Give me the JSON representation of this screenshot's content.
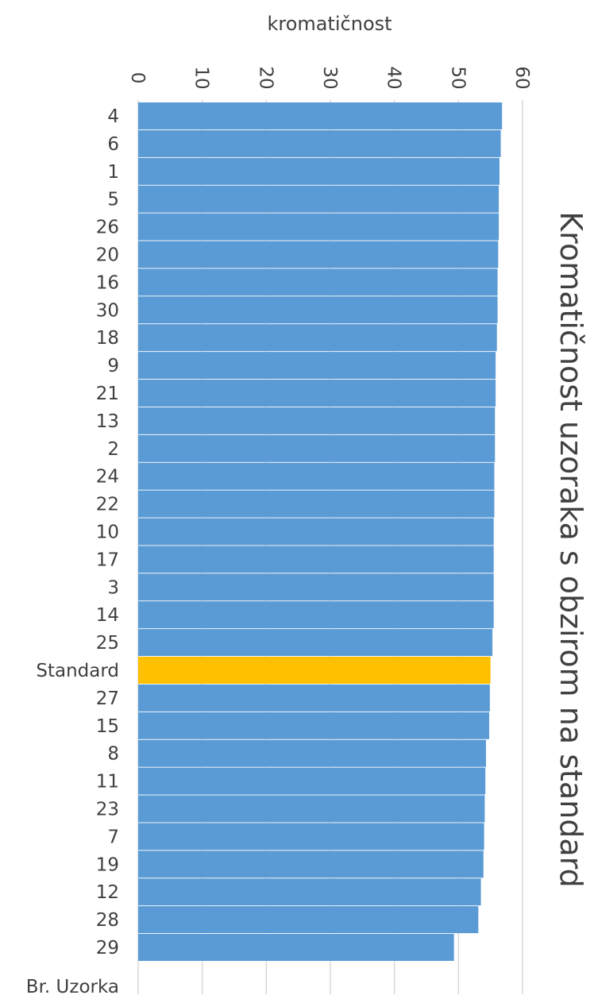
{
  "chart_data": {
    "type": "bar",
    "orientation": "horizontal",
    "title": "Kromatičnost uzoraka s obzirom na standard",
    "value_axis_label": "kromatičnost",
    "category_axis_label": "Br. Uzorka",
    "xlim": [
      0,
      60
    ],
    "ticks": [
      "0",
      "10",
      "20",
      "30",
      "40",
      "50",
      "60"
    ],
    "grid": true,
    "legend": "none",
    "colors": {
      "default": "#5b9bd5",
      "highlight": "#ffc000",
      "grid": "#d9d9d9",
      "text": "#404040"
    },
    "highlight_category": "Standard",
    "categories": [
      "4",
      "6",
      "1",
      "5",
      "26",
      "20",
      "16",
      "30",
      "18",
      "9",
      "21",
      "13",
      "2",
      "24",
      "22",
      "10",
      "17",
      "3",
      "14",
      "25",
      "Standard",
      "27",
      "15",
      "8",
      "11",
      "23",
      "7",
      "19",
      "12",
      "28",
      "29"
    ],
    "values": [
      56.8,
      56.6,
      56.4,
      56.3,
      56.3,
      56.2,
      56.1,
      56.1,
      56.0,
      55.8,
      55.8,
      55.7,
      55.7,
      55.6,
      55.6,
      55.5,
      55.5,
      55.5,
      55.5,
      55.3,
      55.0,
      54.9,
      54.8,
      54.3,
      54.2,
      54.1,
      54.0,
      53.9,
      53.5,
      53.1,
      49.3
    ]
  }
}
